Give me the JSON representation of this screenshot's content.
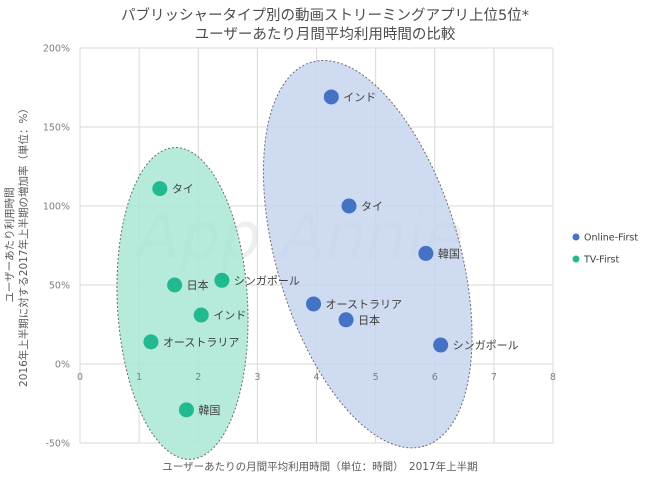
{
  "chart_data": {
    "type": "scatter",
    "title": [
      "パブリッシャータイプ別の動画ストリーミングアプリ上位5位*",
      "ユーザーあたり月間平均利用時間の比較"
    ],
    "xlabel": "ユーザーあたりの月間平均利用時間（単位：時間）　2017年上半期",
    "ylabel": [
      "ユーザーあたり利用時間",
      "2016年上半期に対する2017年上半期の増加率（単位：%）"
    ],
    "xlim": [
      0,
      8
    ],
    "ylim": [
      -50,
      200
    ],
    "x_ticks": [
      "0",
      "1",
      "2",
      "3",
      "4",
      "5",
      "6",
      "7",
      "8"
    ],
    "y_ticks": [
      "-50%",
      "0%",
      "50%",
      "100%",
      "150%",
      "200%"
    ],
    "grid": true,
    "legend_position": "right",
    "watermark": "App Annie",
    "series": [
      {
        "name": "Online-First",
        "color": "#4472c4",
        "region_color": "#c5d5ee",
        "points": [
          {
            "label": "インド",
            "x": 4.25,
            "y": 169
          },
          {
            "label": "タイ",
            "x": 4.55,
            "y": 100
          },
          {
            "label": "韓国",
            "x": 5.85,
            "y": 70
          },
          {
            "label": "オーストラリア",
            "x": 3.95,
            "y": 38
          },
          {
            "label": "日本",
            "x": 4.5,
            "y": 28
          },
          {
            "label": "シンガポール",
            "x": 6.1,
            "y": 12
          }
        ]
      },
      {
        "name": "TV-First",
        "color": "#21b990",
        "region_color": "#a9e6d3",
        "points": [
          {
            "label": "タイ",
            "x": 1.35,
            "y": 111
          },
          {
            "label": "シンガポール",
            "x": 2.4,
            "y": 53
          },
          {
            "label": "日本",
            "x": 1.6,
            "y": 50
          },
          {
            "label": "インド",
            "x": 2.05,
            "y": 31
          },
          {
            "label": "オーストラリア",
            "x": 1.2,
            "y": 14
          },
          {
            "label": "韓国",
            "x": 1.8,
            "y": -29
          }
        ]
      }
    ]
  }
}
